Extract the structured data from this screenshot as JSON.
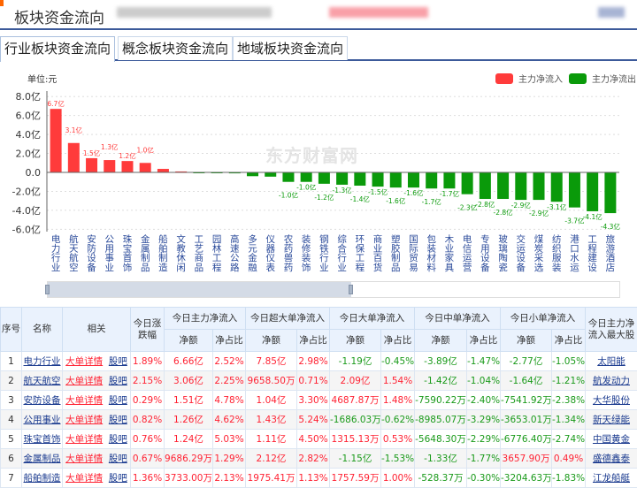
{
  "header": {
    "title": "板块资金流向"
  },
  "tabs": [
    {
      "label": "行业板块资金流向",
      "active": true
    },
    {
      "label": "概念板块资金流向"
    },
    {
      "label": "地域板块资金流向"
    }
  ],
  "chart_data": {
    "type": "bar",
    "unit_label": "单位:元",
    "watermark": "东方财富网",
    "ylim": [
      -6,
      8
    ],
    "yticks": [
      "8.0亿",
      "6.0亿",
      "4.0亿",
      "2.0亿",
      "0.0",
      "-2.0亿",
      "-4.0亿",
      "-6.0亿"
    ],
    "ytick_values": [
      8,
      6,
      4,
      2,
      0,
      -2,
      -4,
      -6
    ],
    "grid": true,
    "legend_position": "top-right",
    "legend": [
      {
        "name": "主力净流入",
        "color": "#ff3b3b"
      },
      {
        "name": "主力净流出",
        "color": "#0a9a0a"
      }
    ],
    "categories": [
      "电力行业",
      "航天航空",
      "安防设备",
      "公用事业",
      "珠宝首饰",
      "金属制品",
      "船舶制造",
      "文教休闲",
      "工艺商品",
      "园林工程",
      "高速公路",
      "多元金融",
      "仪器仪表",
      "农药兽药",
      "装修装饰",
      "钢铁行业",
      "综合行业",
      "环保工程",
      "商业百货",
      "塑胶制品",
      "国际贸易",
      "包装材料",
      "木业家具",
      "电信运营",
      "专用设备",
      "玻璃陶瓷",
      "交运设备",
      "煤炭采选",
      "纺织服装",
      "港口水运",
      "工程建设",
      "旅游酒店"
    ],
    "values": [
      6.7,
      3.1,
      1.5,
      1.3,
      1.2,
      1.0,
      0.37,
      0.1,
      -0.02,
      -0.03,
      -0.1,
      -0.4,
      -0.45,
      -1.0,
      -1.0,
      -1.2,
      -1.3,
      -1.4,
      -1.5,
      -1.6,
      -1.6,
      -1.7,
      -1.7,
      -2.3,
      -2.8,
      -2.8,
      -2.9,
      -2.9,
      -3.1,
      -3.7,
      -4.1,
      -4.3
    ],
    "data_labels": [
      "6.7亿",
      "3.1亿",
      "1.5亿",
      "1.3亿",
      "1.2亿",
      "1.0亿",
      "",
      "",
      "",
      "",
      "",
      "",
      "",
      "-1.0亿",
      "-1.0亿",
      "-1.2亿",
      "-1.3亿",
      "-1.4亿",
      "-1.5亿",
      "-1.6亿",
      "-1.6亿",
      "-1.7亿",
      "-1.7亿",
      "-2.3亿",
      "-2.8亿",
      "-2.8亿",
      "-2.9亿",
      "-2.9亿",
      "-3.1亿",
      "-3.7亿",
      "-4.1亿",
      "-4.3亿"
    ]
  },
  "table": {
    "headers": {
      "index": "序号",
      "name": "名称",
      "related": "相关",
      "change": "今日涨跌幅",
      "main": "今日主力净流入",
      "super": "今日超大单净流入",
      "large": "今日大单净流入",
      "medium": "今日中单净流入",
      "small": "今日小单净流入",
      "amount": "净额",
      "ratio": "净占比",
      "top_stock": "今日主力净流入最大股"
    },
    "rows": [
      {
        "index": "1",
        "name": "电力行业",
        "detail": "大单详情",
        "bar": "股吧",
        "change": "1.89%",
        "main": "6.66亿",
        "main_r": "2.52%",
        "super": "7.85亿",
        "super_r": "2.98%",
        "large": "-1.19亿",
        "large_r": "-0.45%",
        "medium": "-3.89亿",
        "medium_r": "-1.47%",
        "small": "-2.77亿",
        "small_r": "-1.05%",
        "top": "太阳能"
      },
      {
        "index": "2",
        "name": "航天航空",
        "detail": "大单详情",
        "bar": "股吧",
        "change": "2.15%",
        "main": "3.06亿",
        "main_r": "2.25%",
        "super": "9658.50万",
        "super_r": "0.71%",
        "large": "2.09亿",
        "large_r": "1.54%",
        "medium": "-1.42亿",
        "medium_r": "-1.04%",
        "small": "-1.64亿",
        "small_r": "-1.21%",
        "top": "航发动力"
      },
      {
        "index": "3",
        "name": "安防设备",
        "detail": "大单详情",
        "bar": "股吧",
        "change": "0.29%",
        "main": "1.51亿",
        "main_r": "4.78%",
        "super": "1.04亿",
        "super_r": "3.30%",
        "large": "4687.87万",
        "large_r": "1.48%",
        "medium": "-7590.22万",
        "medium_r": "-2.40%",
        "small": "-7541.92万",
        "small_r": "-2.38%",
        "top": "大华股份"
      },
      {
        "index": "4",
        "name": "公用事业",
        "detail": "大单详情",
        "bar": "股吧",
        "change": "0.82%",
        "main": "1.26亿",
        "main_r": "4.62%",
        "super": "1.43亿",
        "super_r": "5.24%",
        "large": "-1686.03万",
        "large_r": "-0.62%",
        "medium": "-8985.07万",
        "medium_r": "-3.29%",
        "small": "-3653.01万",
        "small_r": "-1.34%",
        "top": "新天绿能"
      },
      {
        "index": "5",
        "name": "珠宝首饰",
        "detail": "大单详情",
        "bar": "股吧",
        "change": "0.76%",
        "main": "1.24亿",
        "main_r": "5.03%",
        "super": "1.11亿",
        "super_r": "4.50%",
        "large": "1315.13万",
        "large_r": "0.53%",
        "medium": "-5648.30万",
        "medium_r": "-2.29%",
        "small": "-6776.40万",
        "small_r": "-2.74%",
        "top": "中国黄金"
      },
      {
        "index": "6",
        "name": "金属制品",
        "detail": "大单详情",
        "bar": "股吧",
        "change": "0.67%",
        "main": "9686.29万",
        "main_r": "1.29%",
        "super": "2.12亿",
        "super_r": "2.82%",
        "large": "-1.15亿",
        "large_r": "-1.53%",
        "medium": "-1.33亿",
        "medium_r": "-1.77%",
        "small": "3657.90万",
        "small_r": "0.49%",
        "top": "盛德鑫泰"
      },
      {
        "index": "7",
        "name": "船舶制造",
        "detail": "大单详情",
        "bar": "股吧",
        "change": "1.36%",
        "main": "3733.00万",
        "main_r": "2.13%",
        "super": "1975.41万",
        "super_r": "1.13%",
        "large": "1757.59万",
        "large_r": "1.00%",
        "medium": "-528.37万",
        "medium_r": "-0.30%",
        "small": "-3204.63万",
        "small_r": "-1.83%",
        "top": "江龙船艇"
      }
    ]
  }
}
